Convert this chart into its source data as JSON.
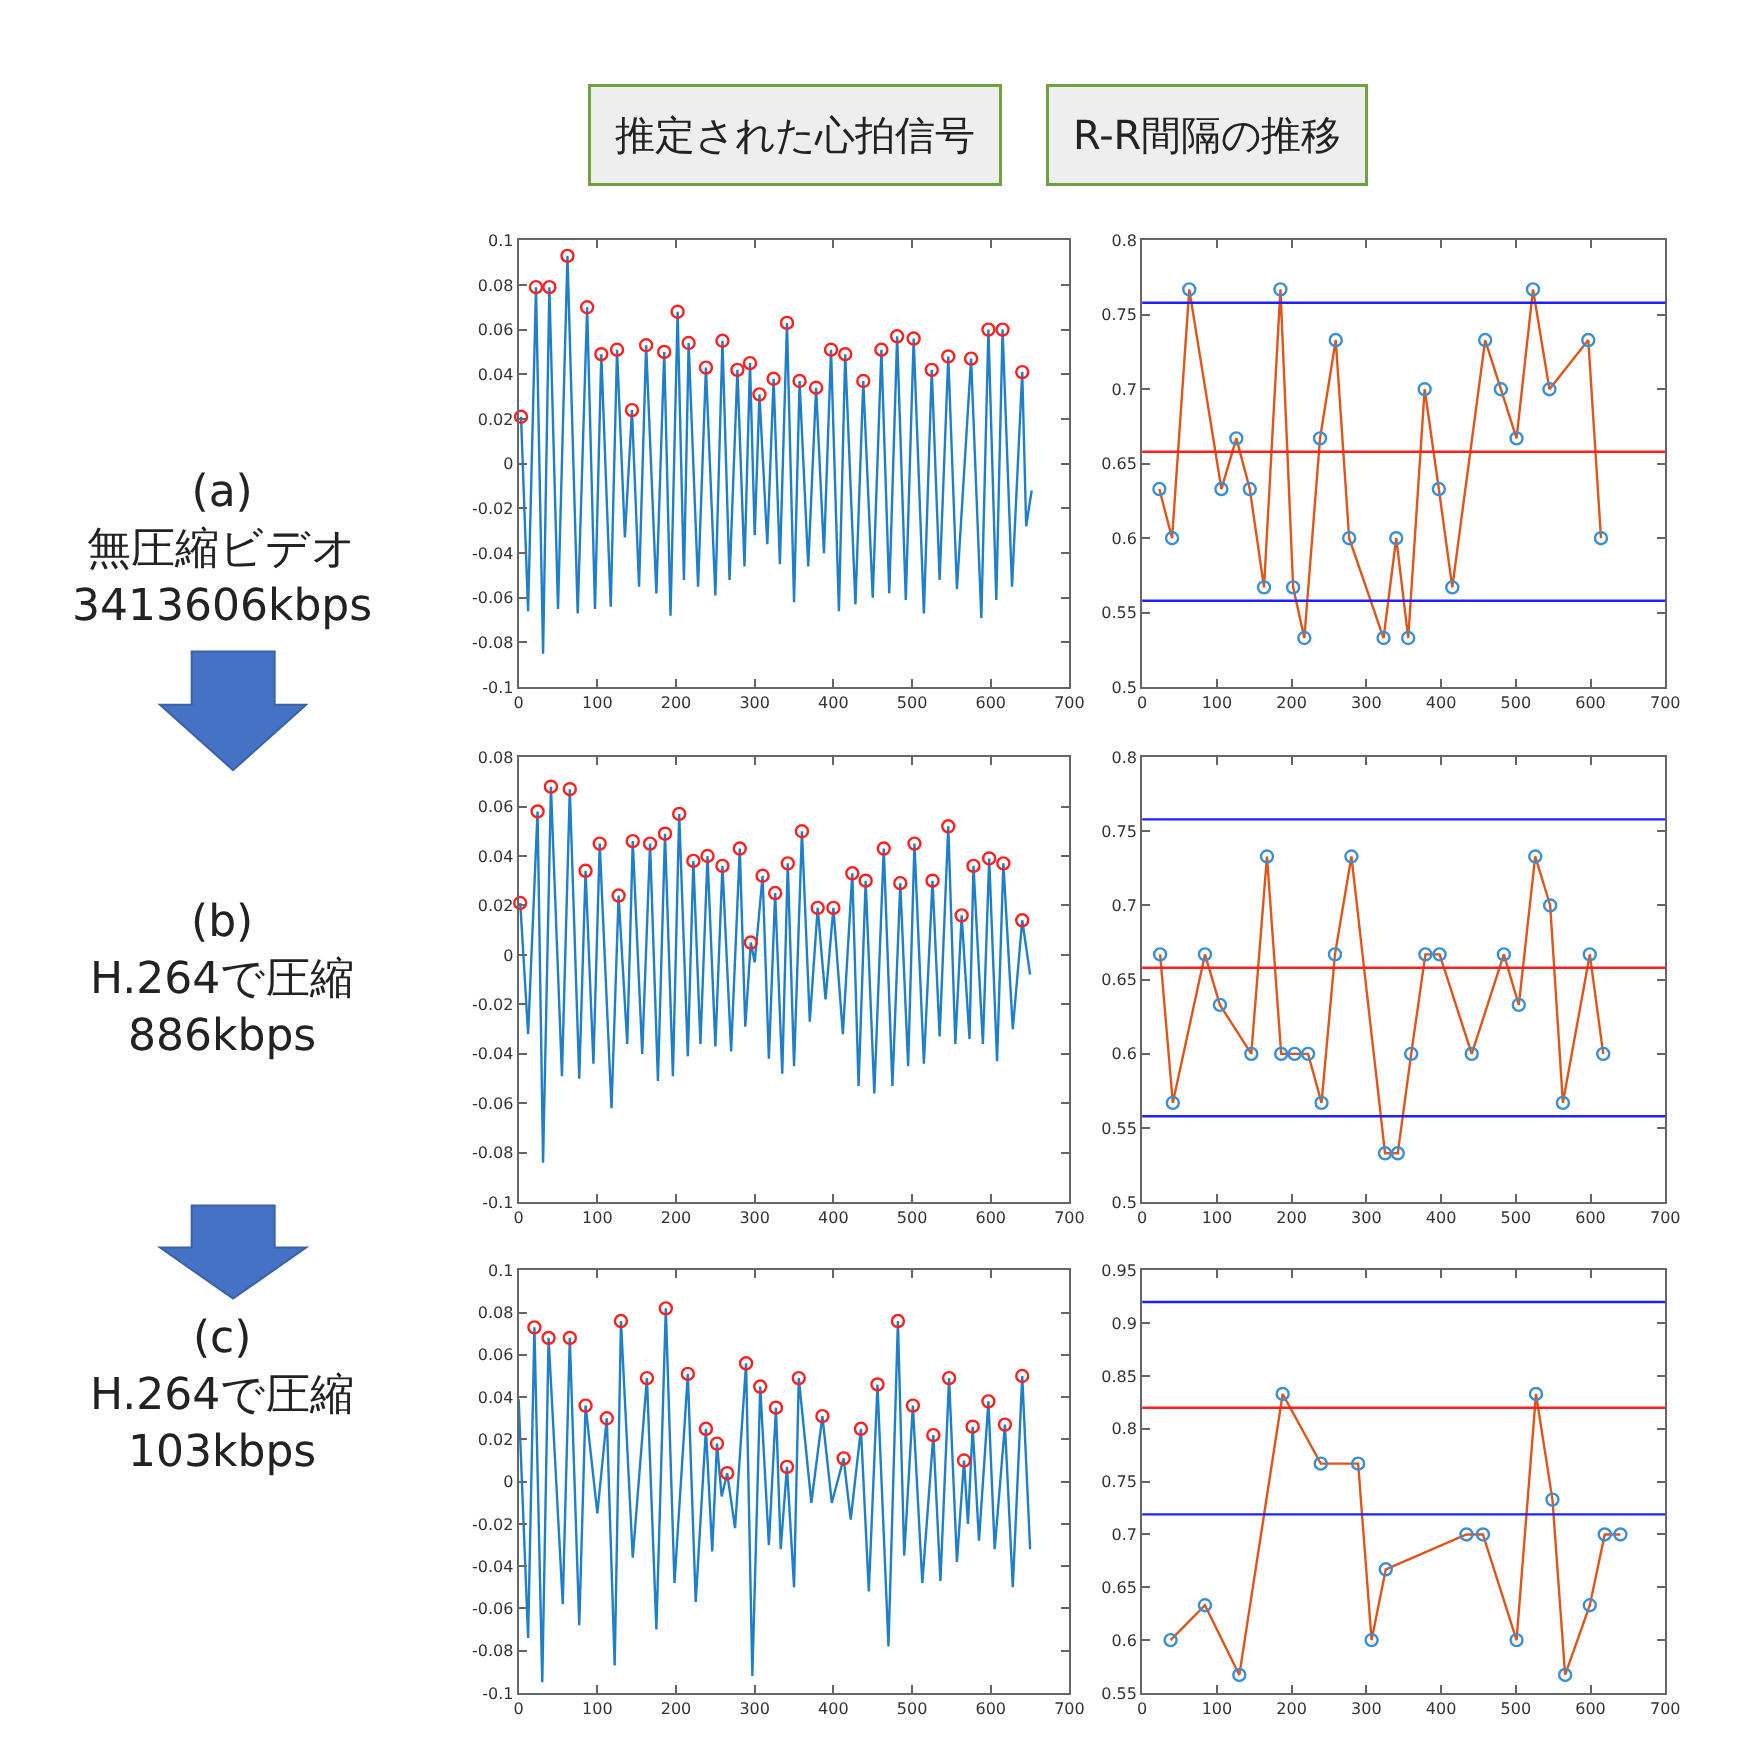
{
  "chart_data": [
    {
      "type": "line",
      "title": "推定された心拍信号",
      "annotations": [
        "(a)\n無圧縮ビデオ\n3413606kbps"
      ],
      "xlim": [
        0,
        700
      ],
      "ylim": [
        -0.1,
        0.1
      ],
      "xticks": [
        0,
        100,
        200,
        300,
        400,
        500,
        600,
        700
      ],
      "yticks": [
        -0.1,
        -0.08,
        -0.06,
        -0.04,
        -0.02,
        0,
        0.02,
        0.04,
        0.06,
        0.08,
        0.1
      ],
      "series": [
        {
          "marker": "none",
          "color": "#1f7fc8",
          "x": [
            3,
            12,
            22,
            31,
            39,
            50,
            62,
            75,
            87,
            97,
            105,
            117,
            125,
            135,
            144,
            153,
            162,
            175,
            185,
            193,
            202,
            210,
            216,
            228,
            238,
            250,
            259,
            268,
            278,
            287,
            294,
            300,
            306,
            316,
            324,
            332,
            341,
            350,
            357,
            368,
            378,
            388,
            397,
            407,
            415,
            428,
            438,
            450,
            461,
            471,
            481,
            492,
            502,
            515,
            525,
            535,
            546,
            557,
            575,
            588,
            597,
            607,
            615,
            627,
            640,
            645,
            652
          ],
          "values": [
            0.021,
            -0.066,
            0.079,
            -0.085,
            0.079,
            -0.065,
            0.093,
            -0.067,
            0.07,
            -0.065,
            0.049,
            -0.064,
            0.051,
            -0.033,
            0.024,
            -0.055,
            0.053,
            -0.058,
            0.05,
            -0.068,
            0.068,
            -0.052,
            0.054,
            -0.055,
            0.043,
            -0.059,
            0.055,
            -0.052,
            0.042,
            -0.046,
            0.045,
            -0.032,
            0.031,
            -0.036,
            0.038,
            -0.045,
            0.063,
            -0.062,
            0.037,
            -0.046,
            0.034,
            -0.04,
            0.051,
            -0.066,
            0.049,
            -0.063,
            0.037,
            -0.06,
            0.051,
            -0.058,
            0.057,
            -0.061,
            0.056,
            -0.067,
            0.042,
            -0.052,
            0.048,
            -0.056,
            0.047,
            -0.069,
            0.06,
            -0.061,
            0.06,
            -0.055,
            0.041,
            -0.028,
            -0.012
          ]
        },
        {
          "type": "scatter",
          "marker": "circle",
          "color": "#ff2020",
          "x": [
            3,
            22,
            39,
            62,
            87,
            105,
            125,
            144,
            162,
            185,
            202,
            216,
            238,
            259,
            278,
            294,
            306,
            324,
            341,
            357,
            378,
            397,
            415,
            438,
            461,
            481,
            502,
            525,
            546,
            575,
            597,
            615,
            640
          ],
          "values": [
            0.021,
            0.079,
            0.079,
            0.093,
            0.07,
            0.049,
            0.051,
            0.024,
            0.053,
            0.05,
            0.068,
            0.054,
            0.043,
            0.055,
            0.042,
            0.045,
            0.031,
            0.038,
            0.063,
            0.037,
            0.034,
            0.051,
            0.049,
            0.037,
            0.051,
            0.057,
            0.056,
            0.042,
            0.048,
            0.047,
            0.06,
            0.06,
            0.041
          ]
        }
      ]
    },
    {
      "type": "line",
      "title": "R-R間隔の推移",
      "xlim": [
        0,
        700
      ],
      "ylim": [
        0.5,
        0.8
      ],
      "xticks": [
        0,
        100,
        200,
        300,
        400,
        500,
        600,
        700
      ],
      "yticks": [
        0.5,
        0.55,
        0.6,
        0.65,
        0.7,
        0.75,
        0.8
      ],
      "ref_lines": [
        {
          "axis": "y",
          "value": 0.758,
          "color": "#2020ff"
        },
        {
          "axis": "y",
          "value": 0.658,
          "color": "#ff2020"
        },
        {
          "axis": "y",
          "value": 0.558,
          "color": "#2020ff"
        }
      ],
      "series": [
        {
          "marker": "none",
          "color": "#e0561a",
          "x": [
            23,
            40,
            63,
            106,
            126,
            144,
            163,
            185,
            202,
            217,
            238,
            259,
            277,
            323,
            340,
            356,
            378,
            397,
            415,
            459,
            480,
            501,
            523,
            545,
            597,
            614
          ],
          "values": [
            0.633,
            0.6,
            0.767,
            0.633,
            0.667,
            0.633,
            0.567,
            0.767,
            0.567,
            0.533,
            0.667,
            0.733,
            0.6,
            0.533,
            0.6,
            0.533,
            0.7,
            0.633,
            0.567,
            0.733,
            0.7,
            0.667,
            0.767,
            0.7,
            0.733,
            0.6
          ]
        },
        {
          "type": "scatter",
          "marker": "circle",
          "color": "#3a8fd8",
          "x": [
            23,
            40,
            63,
            106,
            126,
            144,
            163,
            185,
            202,
            217,
            238,
            259,
            277,
            323,
            340,
            356,
            378,
            397,
            415,
            459,
            480,
            501,
            523,
            545,
            597,
            614
          ],
          "values": [
            0.633,
            0.6,
            0.767,
            0.633,
            0.667,
            0.633,
            0.567,
            0.767,
            0.567,
            0.533,
            0.667,
            0.733,
            0.6,
            0.533,
            0.6,
            0.533,
            0.7,
            0.633,
            0.567,
            0.733,
            0.7,
            0.667,
            0.767,
            0.7,
            0.733,
            0.6
          ]
        }
      ]
    },
    {
      "type": "line",
      "annotations": [
        "(b)\nH.264で圧縮\n886kbps"
      ],
      "xlim": [
        0,
        700
      ],
      "ylim": [
        -0.1,
        0.08
      ],
      "xticks": [
        0,
        100,
        200,
        300,
        400,
        500,
        600,
        700
      ],
      "yticks": [
        -0.1,
        -0.08,
        -0.06,
        -0.04,
        -0.02,
        0,
        0.02,
        0.04,
        0.06,
        0.08
      ],
      "series": [
        {
          "marker": "none",
          "color": "#1f7fc8",
          "x": [
            2,
            12,
            24,
            31,
            41,
            55,
            65,
            77,
            85,
            95,
            103,
            118,
            127,
            138,
            145,
            157,
            167,
            177,
            186,
            196,
            204,
            215,
            222,
            231,
            240,
            250,
            259,
            270,
            281,
            288,
            295,
            300,
            310,
            318,
            326,
            335,
            342,
            350,
            360,
            370,
            380,
            390,
            400,
            412,
            424,
            432,
            441,
            452,
            464,
            475,
            485,
            495,
            503,
            515,
            526,
            535,
            546,
            555,
            563,
            573,
            578,
            590,
            598,
            608,
            616,
            628,
            640,
            650
          ],
          "values": [
            0.021,
            -0.032,
            0.058,
            -0.084,
            0.068,
            -0.049,
            0.067,
            -0.05,
            0.034,
            -0.044,
            0.045,
            -0.062,
            0.024,
            -0.036,
            0.046,
            -0.04,
            0.045,
            -0.051,
            0.049,
            -0.049,
            0.057,
            -0.041,
            0.038,
            -0.036,
            0.04,
            -0.037,
            0.036,
            -0.039,
            0.043,
            -0.029,
            0.005,
            -0.003,
            0.032,
            -0.042,
            0.025,
            -0.048,
            0.037,
            -0.045,
            0.05,
            -0.027,
            0.019,
            -0.018,
            0.019,
            -0.032,
            0.033,
            -0.053,
            0.03,
            -0.056,
            0.043,
            -0.053,
            0.029,
            -0.045,
            0.045,
            -0.044,
            0.03,
            -0.033,
            0.052,
            -0.036,
            0.016,
            -0.034,
            0.036,
            -0.036,
            0.039,
            -0.043,
            0.037,
            -0.03,
            0.014,
            -0.008
          ]
        },
        {
          "type": "scatter",
          "marker": "circle",
          "color": "#ff2020",
          "x": [
            2,
            24,
            41,
            65,
            85,
            103,
            127,
            145,
            167,
            186,
            204,
            222,
            240,
            259,
            281,
            295,
            310,
            326,
            342,
            360,
            380,
            400,
            424,
            441,
            464,
            485,
            503,
            526,
            546,
            563,
            578,
            598,
            616,
            640
          ],
          "values": [
            0.021,
            0.058,
            0.068,
            0.067,
            0.034,
            0.045,
            0.024,
            0.046,
            0.045,
            0.049,
            0.057,
            0.038,
            0.04,
            0.036,
            0.043,
            0.005,
            0.032,
            0.025,
            0.037,
            0.05,
            0.019,
            0.019,
            0.033,
            0.03,
            0.043,
            0.029,
            0.045,
            0.03,
            0.052,
            0.016,
            0.036,
            0.039,
            0.037,
            0.014
          ]
        }
      ]
    },
    {
      "type": "line",
      "xlim": [
        0,
        700
      ],
      "ylim": [
        0.5,
        0.8
      ],
      "xticks": [
        0,
        100,
        200,
        300,
        400,
        500,
        600,
        700
      ],
      "yticks": [
        0.5,
        0.55,
        0.6,
        0.65,
        0.7,
        0.75,
        0.8
      ],
      "ref_lines": [
        {
          "axis": "y",
          "value": 0.758,
          "color": "#2020ff"
        },
        {
          "axis": "y",
          "value": 0.658,
          "color": "#ff2020"
        },
        {
          "axis": "y",
          "value": 0.558,
          "color": "#2020ff"
        }
      ],
      "series": [
        {
          "marker": "none",
          "color": "#e0561a",
          "x": [
            24,
            41,
            84,
            104,
            146,
            167,
            186,
            204,
            222,
            240,
            258,
            280,
            325,
            342,
            360,
            379,
            398,
            441,
            484,
            504,
            526,
            546,
            563,
            599,
            617
          ],
          "values": [
            0.667,
            0.567,
            0.667,
            0.633,
            0.6,
            0.733,
            0.6,
            0.6,
            0.6,
            0.567,
            0.667,
            0.733,
            0.533,
            0.533,
            0.6,
            0.667,
            0.667,
            0.6,
            0.667,
            0.633,
            0.733,
            0.7,
            0.567,
            0.667,
            0.6
          ]
        },
        {
          "type": "scatter",
          "marker": "circle",
          "color": "#3a8fd8",
          "x": [
            24,
            41,
            84,
            104,
            146,
            167,
            186,
            204,
            222,
            240,
            258,
            280,
            325,
            342,
            360,
            379,
            398,
            441,
            484,
            504,
            526,
            546,
            563,
            599,
            617
          ],
          "values": [
            0.667,
            0.567,
            0.667,
            0.633,
            0.6,
            0.733,
            0.6,
            0.6,
            0.6,
            0.567,
            0.667,
            0.733,
            0.533,
            0.533,
            0.6,
            0.667,
            0.667,
            0.6,
            0.667,
            0.633,
            0.733,
            0.7,
            0.567,
            0.667,
            0.6
          ]
        }
      ]
    },
    {
      "type": "line",
      "annotations": [
        "(c)\nH.264で圧縮\n103kbps"
      ],
      "xlim": [
        0,
        700
      ],
      "ylim": [
        -0.1,
        0.1
      ],
      "xticks": [
        0,
        100,
        200,
        300,
        400,
        500,
        600,
        700
      ],
      "yticks": [
        -0.1,
        -0.08,
        -0.06,
        -0.04,
        -0.02,
        0,
        0.02,
        0.04,
        0.06,
        0.08,
        0.1
      ],
      "series": [
        {
          "marker": "none",
          "color": "#1f7fc8",
          "x": [
            0,
            12,
            20,
            30,
            38,
            56,
            65,
            77,
            85,
            100,
            112,
            122,
            130,
            145,
            163,
            175,
            187,
            198,
            215,
            225,
            238,
            246,
            252,
            258,
            265,
            275,
            289,
            297,
            307,
            318,
            327,
            333,
            341,
            350,
            356,
            372,
            386,
            398,
            413,
            422,
            435,
            445,
            456,
            470,
            482,
            490,
            501,
            513,
            527,
            536,
            547,
            557,
            566,
            571,
            577,
            585,
            597,
            605,
            618,
            628,
            640,
            650
          ],
          "values": [
            0.039,
            -0.074,
            0.073,
            -0.095,
            0.068,
            -0.058,
            0.068,
            -0.068,
            0.036,
            -0.015,
            0.03,
            -0.087,
            0.076,
            -0.036,
            0.049,
            -0.07,
            0.082,
            -0.048,
            0.051,
            -0.057,
            0.025,
            -0.033,
            0.018,
            -0.007,
            0.004,
            -0.022,
            0.056,
            -0.092,
            0.045,
            -0.03,
            0.035,
            -0.032,
            0.007,
            -0.05,
            0.049,
            -0.01,
            0.031,
            -0.01,
            0.011,
            -0.018,
            0.025,
            -0.052,
            0.046,
            -0.078,
            0.076,
            -0.035,
            0.036,
            -0.048,
            0.022,
            -0.047,
            0.049,
            -0.038,
            0.01,
            -0.02,
            0.026,
            -0.028,
            0.038,
            -0.032,
            0.027,
            -0.05,
            0.05,
            -0.032
          ]
        },
        {
          "type": "scatter",
          "marker": "circle",
          "color": "#ff2020",
          "x": [
            20,
            38,
            65,
            85,
            112,
            130,
            163,
            187,
            215,
            238,
            252,
            265,
            289,
            307,
            327,
            341,
            356,
            386,
            413,
            435,
            456,
            482,
            501,
            527,
            547,
            566,
            577,
            597,
            618,
            640
          ],
          "values": [
            0.073,
            0.068,
            0.068,
            0.036,
            0.03,
            0.076,
            0.049,
            0.082,
            0.051,
            0.025,
            0.018,
            0.004,
            0.056,
            0.045,
            0.035,
            0.007,
            0.049,
            0.031,
            0.011,
            0.025,
            0.046,
            0.076,
            0.036,
            0.022,
            0.049,
            0.01,
            0.026,
            0.038,
            0.027,
            0.05
          ]
        }
      ]
    },
    {
      "type": "line",
      "xlim": [
        0,
        700
      ],
      "ylim": [
        0.55,
        0.95
      ],
      "xticks": [
        0,
        100,
        200,
        300,
        400,
        500,
        600,
        700
      ],
      "yticks": [
        0.55,
        0.6,
        0.65,
        0.7,
        0.75,
        0.8,
        0.85,
        0.9,
        0.95
      ],
      "ref_lines": [
        {
          "axis": "y",
          "value": 0.92,
          "color": "#2020ff"
        },
        {
          "axis": "y",
          "value": 0.82,
          "color": "#ff2020"
        },
        {
          "axis": "y",
          "value": 0.719,
          "color": "#2020ff"
        }
      ],
      "series": [
        {
          "marker": "none",
          "color": "#e0561a",
          "x": [
            38,
            84,
            130,
            188,
            239,
            289,
            307,
            326,
            434,
            456,
            501,
            527,
            549,
            566,
            599,
            619,
            640
          ],
          "values": [
            0.6,
            0.633,
            0.567,
            0.833,
            0.767,
            0.767,
            0.6,
            0.667,
            0.7,
            0.7,
            0.6,
            0.833,
            0.733,
            0.567,
            0.633,
            0.7,
            0.7
          ]
        },
        {
          "type": "scatter",
          "marker": "circle",
          "color": "#3a8fd8",
          "x": [
            38,
            84,
            130,
            188,
            239,
            289,
            307,
            326,
            434,
            456,
            501,
            527,
            549,
            566,
            599,
            619,
            640
          ],
          "values": [
            0.6,
            0.633,
            0.567,
            0.833,
            0.767,
            0.767,
            0.6,
            0.667,
            0.7,
            0.7,
            0.6,
            0.833,
            0.733,
            0.567,
            0.633,
            0.7,
            0.7
          ]
        }
      ]
    }
  ]
}
